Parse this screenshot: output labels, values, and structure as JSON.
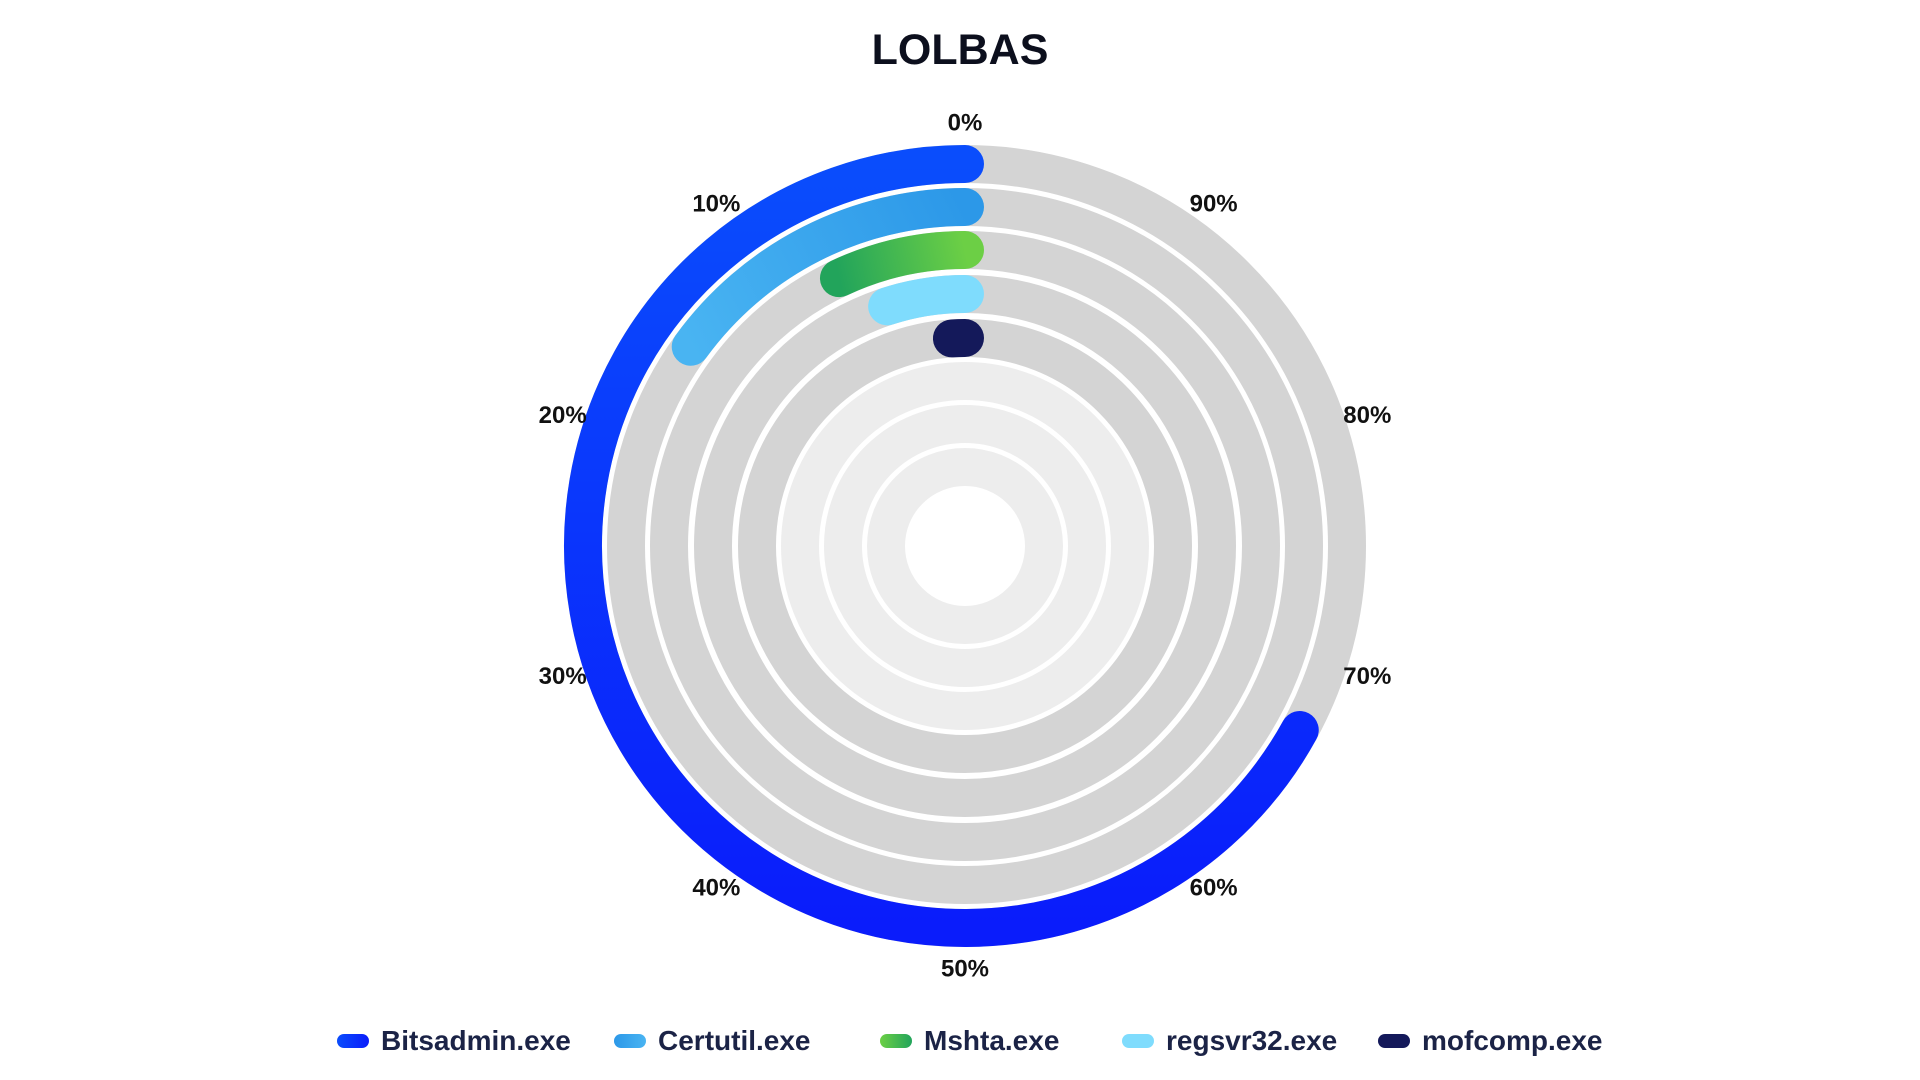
{
  "chart_data": {
    "type": "radial-bar",
    "title": "LOLBAS",
    "angular_axis": {
      "direction": "counterclockwise",
      "start": "top",
      "range": [
        0,
        100
      ],
      "tick_labels": [
        "0%",
        "10%",
        "20%",
        "30%",
        "40%",
        "50%",
        "60%",
        "70%",
        "80%",
        "90%"
      ]
    },
    "series": [
      {
        "name": "Bitsadmin.exe",
        "value": 67,
        "color_start": "#0a4dfc",
        "color_end": "#0a1cfb"
      },
      {
        "name": "Certutil.exe",
        "value": 15,
        "color_start": "#2c98e8",
        "color_end": "#49b4f2"
      },
      {
        "name": "Mshta.exe",
        "value": 7,
        "color_start": "#6ccf45",
        "color_end": "#22a45b"
      },
      {
        "name": "regsvr32.exe",
        "value": 5,
        "color_start": "#7fdcfd",
        "color_end": "#7fdcfd"
      },
      {
        "name": "mofcomp.exe",
        "value": 1,
        "color_start": "#14195a",
        "color_end": "#14195a"
      }
    ],
    "track_color": "#d4d4d4",
    "inner_track_color": "#ededed",
    "legend_position": "bottom"
  }
}
